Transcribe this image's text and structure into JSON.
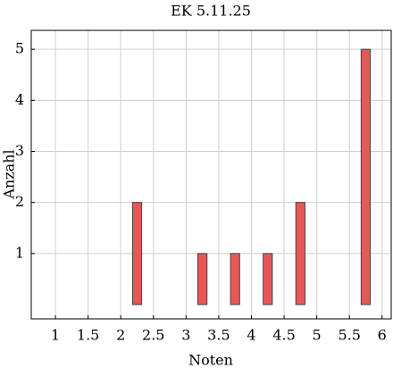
{
  "chart_data": {
    "type": "bar",
    "title": "EK 5.11.25",
    "x_label": "Noten",
    "y_label": "Anzahl",
    "x": [
      1.25,
      1.75,
      2.25,
      2.75,
      3.25,
      3.75,
      4.25,
      4.75,
      5.25,
      5.75
    ],
    "values": [
      0,
      0,
      2,
      0,
      1,
      1,
      1,
      2,
      0,
      5
    ],
    "color": "#e85757",
    "xlim": [
      0.63,
      6.14
    ],
    "xticks": [
      1,
      1.5,
      2,
      2.5,
      3,
      3.5,
      4,
      4.5,
      5,
      5.5,
      6
    ],
    "ylim": [
      -0.28,
      5.37
    ],
    "yticks": [
      1,
      2,
      3,
      4,
      5
    ],
    "grid": true
  }
}
